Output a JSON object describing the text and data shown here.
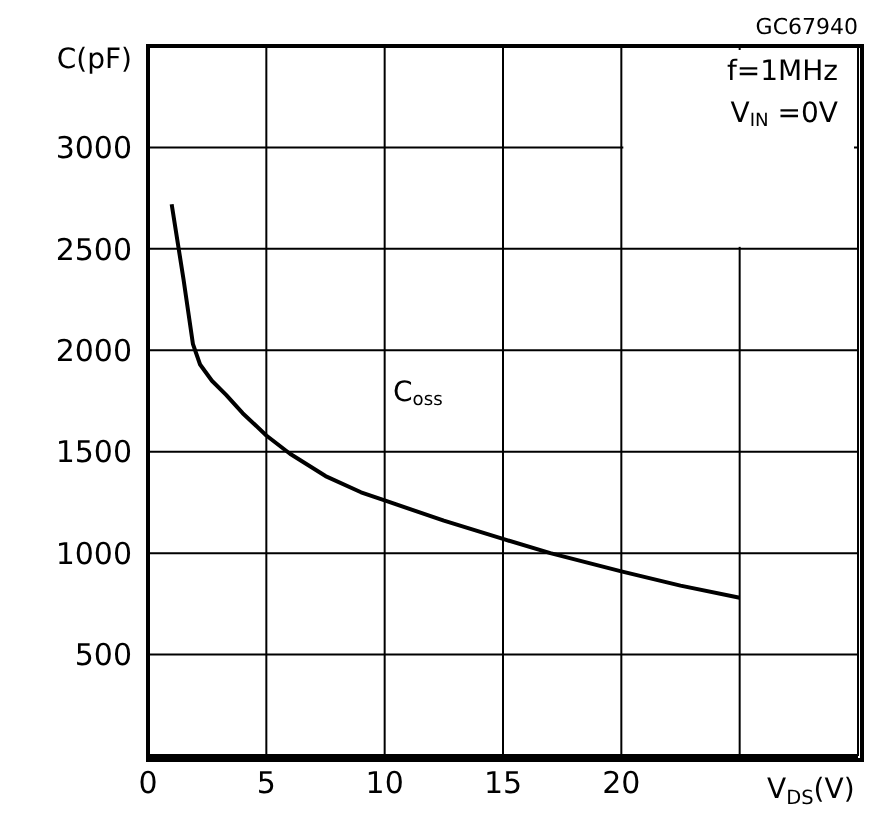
{
  "chart_data": {
    "type": "line",
    "xlabel": "V$_{DS}$(V)",
    "ylabel": "C(pF)",
    "x": [
      1.0,
      1.5,
      1.9,
      2.2,
      2.7,
      3.3,
      4,
      5,
      6,
      7.5,
      9,
      10,
      12.5,
      15,
      17,
      20,
      22.5,
      25
    ],
    "series": [
      {
        "color": "#000000",
        "values": [
          2720,
          2350,
          2030,
          1930,
          1850,
          1780,
          1690,
          1580,
          1490,
          1380,
          1300,
          1260,
          1160,
          1070,
          1000,
          910,
          840,
          780
        ]
      }
    ],
    "xlim": [
      0,
      30
    ],
    "xticks": [
      0,
      5,
      10,
      15,
      20,
      {
        "value": 25,
        "label": null
      }
    ],
    "ylim": [
      0,
      3500
    ],
    "yticks": [
      500,
      1000,
      1500,
      2000,
      2500,
      3000
    ],
    "grid": true,
    "marker": "none",
    "line_style": "solid",
    "annotations": [
      "GC67940",
      "f=1MHz",
      "V$_{IN}$ =0V",
      "C$_{oss}$"
    ]
  }
}
